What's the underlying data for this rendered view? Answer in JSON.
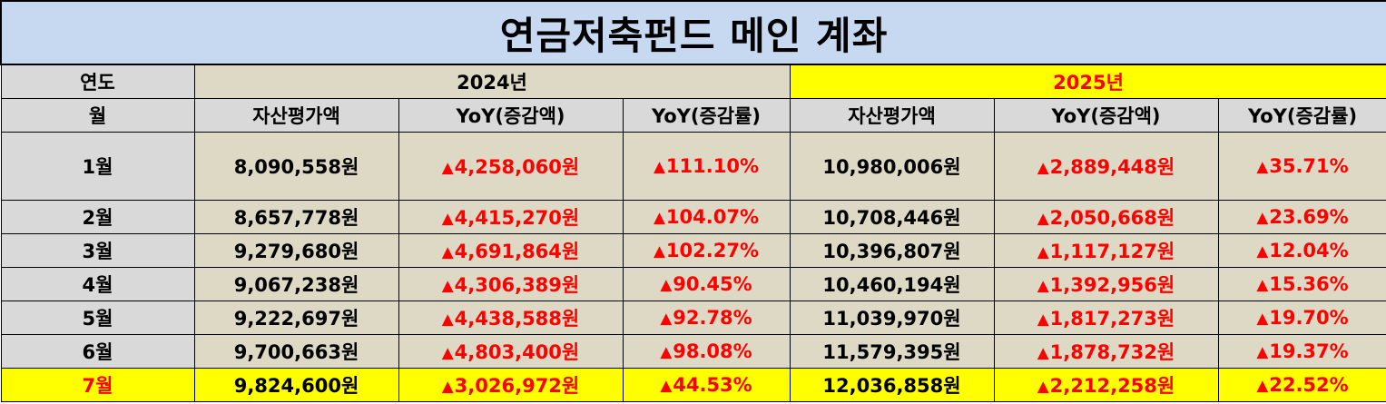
{
  "title": "연금저축펀드 메인 계좌",
  "header": {
    "year_label": "연도",
    "month_label": "월",
    "year_2024": "2024년",
    "year_2025": "2025년",
    "col_asset": "자산평가액",
    "col_yoy_amt": "YoY(증감액)",
    "col_yoy_rate": "YoY(증감률)"
  },
  "up_marker": "▲",
  "colors": {
    "title_bg": "#c6d9f0",
    "header_gray": "#d9d9d9",
    "cell_beige": "#ddd9c4",
    "highlight_yellow": "#ffff00",
    "up_red": "#ff0000"
  },
  "rows": [
    {
      "month": "1월",
      "a2024": "8,090,558원",
      "yamt2024": "4,258,060원",
      "yrate2024": "111.10%",
      "a2025": "10,980,006원",
      "yamt2025": "2,889,448원",
      "yrate2025": "35.71%"
    },
    {
      "month": "2월",
      "a2024": "8,657,778원",
      "yamt2024": "4,415,270원",
      "yrate2024": "104.07%",
      "a2025": "10,708,446원",
      "yamt2025": "2,050,668원",
      "yrate2025": "23.69%"
    },
    {
      "month": "3월",
      "a2024": "9,279,680원",
      "yamt2024": "4,691,864원",
      "yrate2024": "102.27%",
      "a2025": "10,396,807원",
      "yamt2025": "1,117,127원",
      "yrate2025": "12.04%"
    },
    {
      "month": "4월",
      "a2024": "9,067,238원",
      "yamt2024": "4,306,389원",
      "yrate2024": "90.45%",
      "a2025": "10,460,194원",
      "yamt2025": "1,392,956원",
      "yrate2025": "15.36%"
    },
    {
      "month": "5월",
      "a2024": "9,222,697원",
      "yamt2024": "4,438,588원",
      "yrate2024": "92.78%",
      "a2025": "11,039,970원",
      "yamt2025": "1,817,273원",
      "yrate2025": "19.70%"
    },
    {
      "month": "6월",
      "a2024": "9,700,663원",
      "yamt2024": "4,803,400원",
      "yrate2024": "98.08%",
      "a2025": "11,579,395원",
      "yamt2025": "1,878,732원",
      "yrate2025": "19.37%"
    },
    {
      "month": "7월",
      "a2024": "9,824,600원",
      "yamt2024": "3,026,972원",
      "yrate2024": "44.53%",
      "a2025": "12,036,858원",
      "yamt2025": "2,212,258원",
      "yrate2025": "22.52%"
    }
  ]
}
